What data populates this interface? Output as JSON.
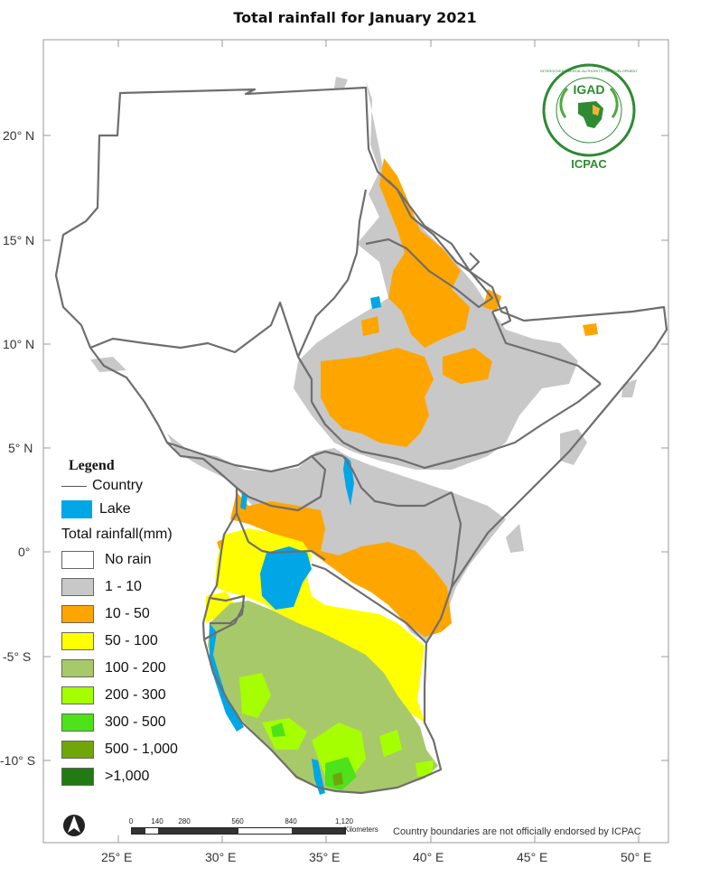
{
  "title": "Total rainfall for January 2021",
  "axes": {
    "y_ticks": [
      "20° N",
      "15° N",
      "10° N",
      "5° N",
      "0°",
      "-5° S",
      "-10° S"
    ],
    "x_ticks": [
      "25° E",
      "30° E",
      "35° E",
      "40° E",
      "45° E",
      "50° E"
    ]
  },
  "legend": {
    "title": "Legend",
    "country_label": "Country",
    "lake_label": "Lake",
    "rainfall_title": "Total rainfall(mm)",
    "classes": [
      {
        "label": "No rain",
        "color": "#ffffff"
      },
      {
        "label": "1 - 10",
        "color": "#c8c8c8"
      },
      {
        "label": "10 - 50",
        "color": "#ffa500"
      },
      {
        "label": "50 - 100",
        "color": "#ffff00"
      },
      {
        "label": "100 - 200",
        "color": "#a8c96a"
      },
      {
        "label": "200 - 300",
        "color": "#a6ff00"
      },
      {
        "label": "300 - 500",
        "color": "#4de21a"
      },
      {
        "label": "500 - 1,000",
        "color": "#6fa60a"
      },
      {
        "label": ">1,000",
        "color": "#237a12"
      }
    ]
  },
  "colors": {
    "lake": "#00a6e6",
    "border": "#6e6e6e"
  },
  "logo": {
    "acronym": "IGAD",
    "ring_text": "INTERGOVERNMENTAL AUTHORITY ON DEVELOPMENT",
    "org": "ICPAC"
  },
  "scale_bar": {
    "labels": [
      "0",
      "140",
      "280",
      "560",
      "840",
      "1,120"
    ],
    "unit": "Kilometers"
  },
  "disclaimer": "Country boundaries are not officially endorsed by ICPAC",
  "north_arrow_icon": "north-arrow-icon"
}
